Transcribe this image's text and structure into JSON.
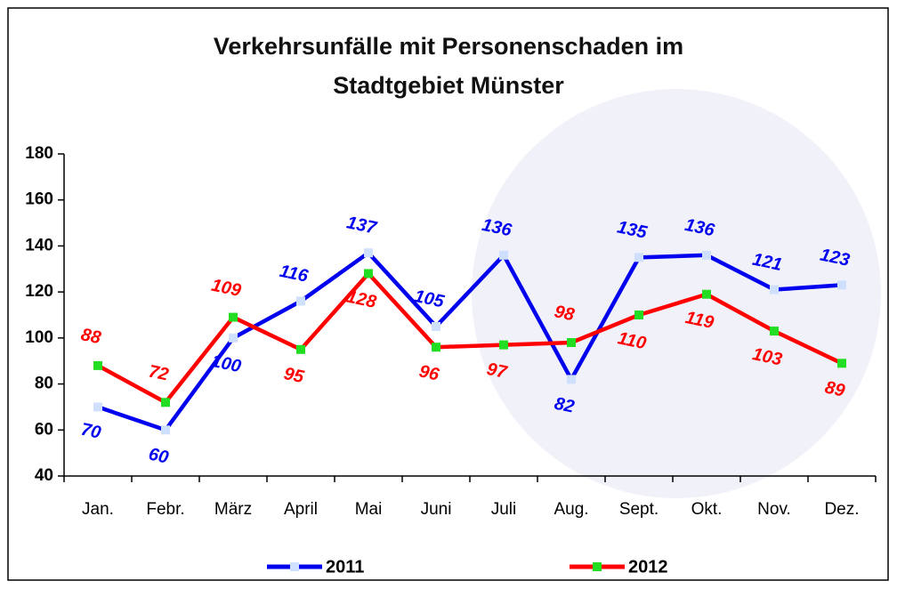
{
  "chart_data": {
    "type": "line",
    "title": "Verkehrsunfälle mit Personenschaden im Stadtgebiet Münster",
    "categories": [
      "Jan.",
      "Febr.",
      "März",
      "April",
      "Mai",
      "Juni",
      "Juli",
      "Aug.",
      "Sept.",
      "Okt.",
      "Nov.",
      "Dez."
    ],
    "series": [
      {
        "name": "2011",
        "color": "#0000ee",
        "values": [
          70,
          60,
          100,
          116,
          137,
          105,
          136,
          82,
          135,
          136,
          121,
          123
        ]
      },
      {
        "name": "2012",
        "color": "#ff0000",
        "values": [
          88,
          72,
          109,
          95,
          128,
          96,
          97,
          98,
          110,
          119,
          103,
          89
        ]
      }
    ],
    "ylim": [
      40,
      180
    ],
    "yticks": [
      40,
      60,
      80,
      100,
      120,
      140,
      160,
      180
    ],
    "legend": "bottom"
  }
}
